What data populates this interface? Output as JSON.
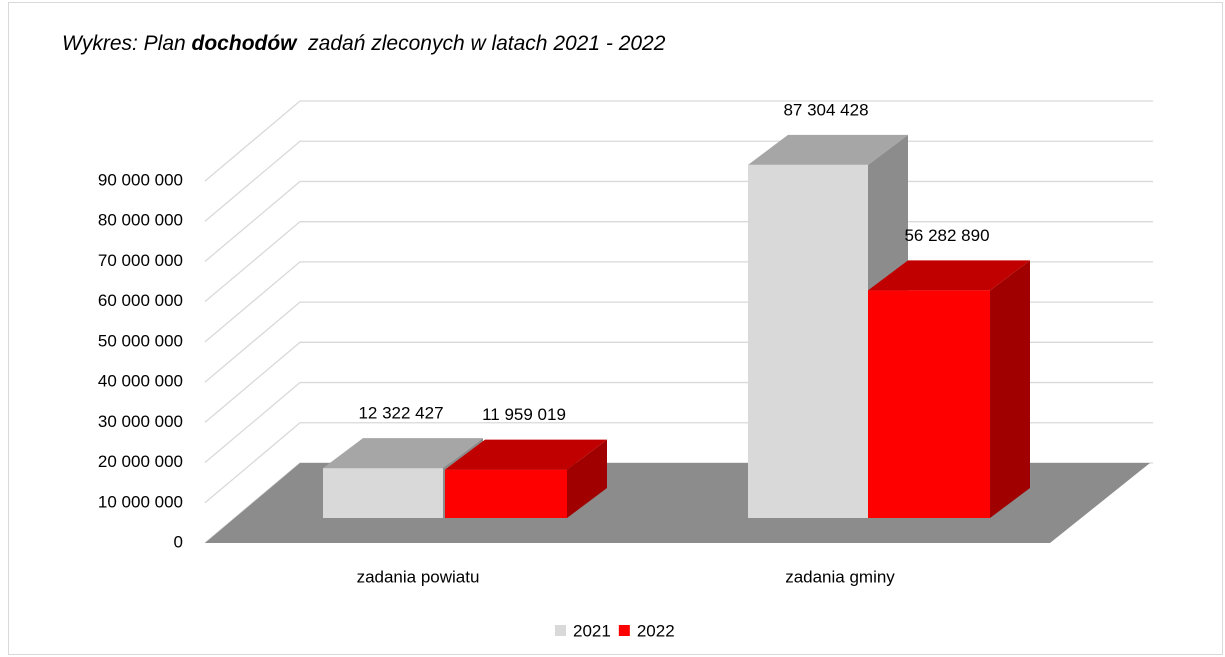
{
  "chart_data": {
    "type": "bar3d",
    "title": [
      "Wykres: Plan ",
      "dochodów",
      "  zadań zleconych w latach 2021 - 2022"
    ],
    "categories": [
      "zadania powiatu",
      "zadania gminy"
    ],
    "series": [
      {
        "name": "2021",
        "color": "#d9d9d9",
        "values": [
          12322427,
          87304428
        ],
        "value_labels": [
          "12 322 427",
          "87 304 428"
        ]
      },
      {
        "name": "2022",
        "color": "#ff0000",
        "values": [
          11959019,
          56282890
        ],
        "value_labels": [
          "11 959 019",
          "56 282 890"
        ]
      }
    ],
    "ylim": [
      0,
      90000000
    ],
    "yticks": [
      0,
      {
        "value": 10000000,
        "label": "10 000 000"
      },
      {
        "value": 20000000,
        "label": "20 000 000"
      },
      {
        "value": 30000000,
        "label": "30 000 000"
      },
      {
        "value": 40000000,
        "label": "40 000 000"
      },
      {
        "value": 50000000,
        "label": "50 000 000"
      },
      {
        "value": 60000000,
        "label": "60 000 000"
      },
      {
        "value": 70000000,
        "label": "70 000 000"
      },
      {
        "value": 80000000,
        "label": "80 000 000"
      },
      {
        "value": 90000000,
        "label": "90 000 000"
      }
    ],
    "grid": true
  }
}
